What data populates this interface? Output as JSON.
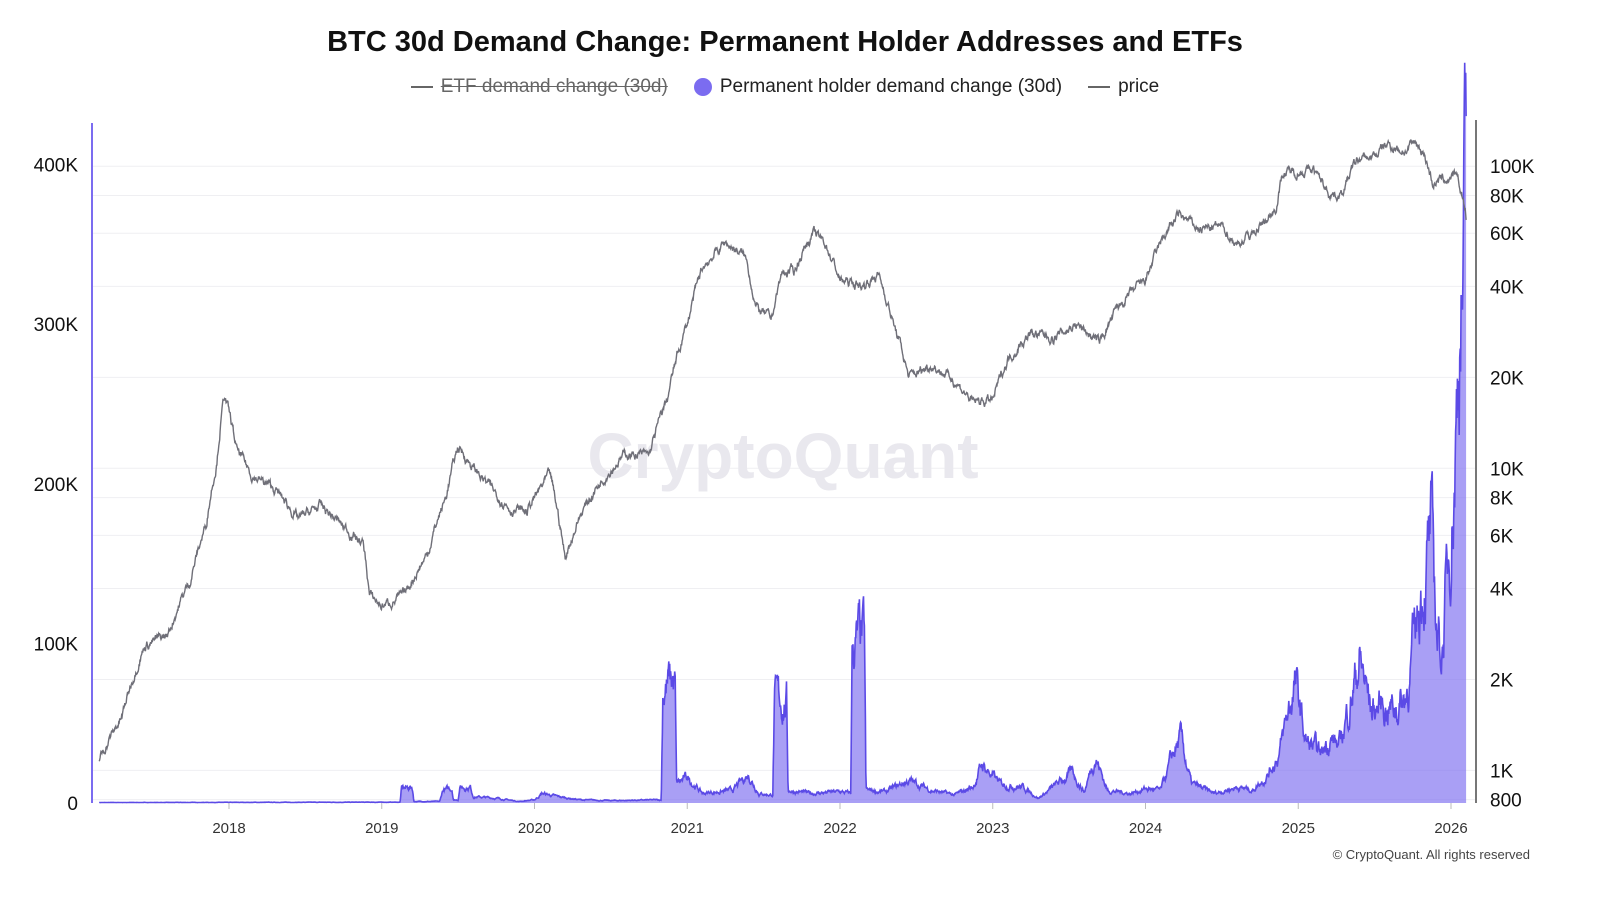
{
  "title": "BTC 30d Demand Change: Permanent Holder Addresses and ETFs",
  "legend": [
    {
      "label": "ETF demand change (30d)",
      "hidden": true,
      "color": "#666666"
    },
    {
      "label": "Permanent holder demand change (30d)",
      "hidden": false,
      "color": "#7b6cf0"
    },
    {
      "label": "price",
      "hidden": false,
      "color": "#6f6f78"
    }
  ],
  "watermark": "CryptoQuant",
  "copyright": "© CryptoQuant. All rights reserved",
  "chart_data": {
    "type": "area",
    "title": "BTC 30d Demand Change: Permanent Holder Addresses and ETFs",
    "x_ticks": [
      "2018",
      "2019",
      "2020",
      "2021",
      "2022",
      "2023",
      "2024",
      "2025",
      "2026"
    ],
    "left_axis": {
      "ticks": [
        "0",
        "100K",
        "200K",
        "300K",
        "400K"
      ],
      "values": [
        0,
        100,
        200,
        300,
        400
      ],
      "range_k": [
        0,
        426
      ],
      "color": "#7b6cf0"
    },
    "right_axis": {
      "scale": "log",
      "ticks": [
        "800",
        "1K",
        "2K",
        "4K",
        "6K",
        "8K",
        "10K",
        "20K",
        "40K",
        "60K",
        "80K",
        "100K"
      ],
      "values": [
        800,
        1000,
        2000,
        4000,
        6000,
        8000,
        10000,
        20000,
        40000,
        60000,
        80000,
        100000
      ],
      "range": [
        780,
        139000
      ]
    },
    "series": [
      {
        "name": "Permanent holder demand change (30d)",
        "axis": "left",
        "unit": "K BTC",
        "color": "#7b6cf0",
        "points": [
          [
            2017.15,
            0.3
          ],
          [
            2018.9,
            0.5
          ],
          [
            2019.12,
            0.5
          ],
          [
            2019.13,
            9
          ],
          [
            2019.2,
            10
          ],
          [
            2019.21,
            1
          ],
          [
            2019.38,
            1
          ],
          [
            2019.4,
            8
          ],
          [
            2019.46,
            9
          ],
          [
            2019.47,
            2
          ],
          [
            2019.5,
            2
          ],
          [
            2019.51,
            10
          ],
          [
            2019.58,
            10
          ],
          [
            2019.6,
            4
          ],
          [
            2019.75,
            3
          ],
          [
            2019.9,
            1
          ],
          [
            2020.0,
            2
          ],
          [
            2020.05,
            6
          ],
          [
            2020.15,
            4
          ],
          [
            2020.3,
            2
          ],
          [
            2020.5,
            1.5
          ],
          [
            2020.83,
            2
          ],
          [
            2020.84,
            73
          ],
          [
            2020.92,
            76
          ],
          [
            2020.93,
            12
          ],
          [
            2021.0,
            16
          ],
          [
            2021.1,
            6
          ],
          [
            2021.3,
            8
          ],
          [
            2021.4,
            18
          ],
          [
            2021.47,
            6
          ],
          [
            2021.56,
            5
          ],
          [
            2021.57,
            63
          ],
          [
            2021.65,
            64
          ],
          [
            2021.66,
            8
          ],
          [
            2021.8,
            6
          ],
          [
            2022.0,
            7
          ],
          [
            2022.07,
            6
          ],
          [
            2022.08,
            99
          ],
          [
            2022.16,
            100
          ],
          [
            2022.17,
            8
          ],
          [
            2022.3,
            7
          ],
          [
            2022.45,
            14
          ],
          [
            2022.6,
            8
          ],
          [
            2022.75,
            5
          ],
          [
            2022.87,
            10
          ],
          [
            2022.93,
            24
          ],
          [
            2023.05,
            12
          ],
          [
            2023.2,
            10
          ],
          [
            2023.3,
            3
          ],
          [
            2023.45,
            14
          ],
          [
            2023.52,
            19
          ],
          [
            2023.6,
            7
          ],
          [
            2023.67,
            30
          ],
          [
            2023.75,
            8
          ],
          [
            2023.9,
            6
          ],
          [
            2024.0,
            9
          ],
          [
            2024.1,
            8
          ],
          [
            2024.18,
            30
          ],
          [
            2024.23,
            40
          ],
          [
            2024.3,
            12
          ],
          [
            2024.45,
            6
          ],
          [
            2024.6,
            10
          ],
          [
            2024.7,
            8
          ],
          [
            2024.8,
            18
          ],
          [
            2024.88,
            32
          ],
          [
            2024.93,
            55
          ],
          [
            2024.98,
            75
          ],
          [
            2025.05,
            38
          ],
          [
            2025.15,
            30
          ],
          [
            2025.2,
            42
          ],
          [
            2025.27,
            35
          ],
          [
            2025.33,
            60
          ],
          [
            2025.4,
            90
          ],
          [
            2025.48,
            58
          ],
          [
            2025.55,
            62
          ],
          [
            2025.62,
            60
          ],
          [
            2025.7,
            65
          ],
          [
            2025.76,
            100
          ],
          [
            2025.82,
            145
          ],
          [
            2025.87,
            165
          ],
          [
            2025.91,
            105
          ],
          [
            2025.94,
            96
          ],
          [
            2025.98,
            145
          ],
          [
            2026.03,
            230
          ],
          [
            2026.06,
            320
          ],
          [
            2026.08,
            330
          ],
          [
            2026.1,
            410
          ]
        ]
      },
      {
        "name": "price",
        "axis": "right",
        "unit": "USD",
        "color": "#6f6f78",
        "points": [
          [
            2017.15,
            1080
          ],
          [
            2017.3,
            1500
          ],
          [
            2017.45,
            2600
          ],
          [
            2017.6,
            2800
          ],
          [
            2017.75,
            4300
          ],
          [
            2017.85,
            6500
          ],
          [
            2017.92,
            10500
          ],
          [
            2017.97,
            17500
          ],
          [
            2018.05,
            11500
          ],
          [
            2018.15,
            9500
          ],
          [
            2018.3,
            8500
          ],
          [
            2018.45,
            6800
          ],
          [
            2018.6,
            7500
          ],
          [
            2018.75,
            6400
          ],
          [
            2018.88,
            5600
          ],
          [
            2018.92,
            3800
          ],
          [
            2019.0,
            3500
          ],
          [
            2019.15,
            3800
          ],
          [
            2019.3,
            5200
          ],
          [
            2019.42,
            8000
          ],
          [
            2019.5,
            11800
          ],
          [
            2019.6,
            10000
          ],
          [
            2019.75,
            8200
          ],
          [
            2019.85,
            7300
          ],
          [
            2019.95,
            7200
          ],
          [
            2020.1,
            9500
          ],
          [
            2020.2,
            5000
          ],
          [
            2020.3,
            7000
          ],
          [
            2020.45,
            9300
          ],
          [
            2020.6,
            11200
          ],
          [
            2020.75,
            11000
          ],
          [
            2020.87,
            17000
          ],
          [
            2021.0,
            30000
          ],
          [
            2021.1,
            46000
          ],
          [
            2021.25,
            56000
          ],
          [
            2021.38,
            50000
          ],
          [
            2021.45,
            34000
          ],
          [
            2021.55,
            31000
          ],
          [
            2021.62,
            44000
          ],
          [
            2021.7,
            45000
          ],
          [
            2021.82,
            60000
          ],
          [
            2021.9,
            56000
          ],
          [
            2022.0,
            42000
          ],
          [
            2022.15,
            40000
          ],
          [
            2022.25,
            44000
          ],
          [
            2022.35,
            30000
          ],
          [
            2022.45,
            20000
          ],
          [
            2022.6,
            22000
          ],
          [
            2022.75,
            19500
          ],
          [
            2022.87,
            16500
          ],
          [
            2023.0,
            16800
          ],
          [
            2023.1,
            23000
          ],
          [
            2023.25,
            28000
          ],
          [
            2023.4,
            27000
          ],
          [
            2023.55,
            30000
          ],
          [
            2023.7,
            26000
          ],
          [
            2023.82,
            34000
          ],
          [
            2024.0,
            42000
          ],
          [
            2024.15,
            62000
          ],
          [
            2024.22,
            69000
          ],
          [
            2024.35,
            62000
          ],
          [
            2024.5,
            63000
          ],
          [
            2024.6,
            55000
          ],
          [
            2024.75,
            63000
          ],
          [
            2024.85,
            72000
          ],
          [
            2024.9,
            95000
          ],
          [
            2025.0,
            96000
          ],
          [
            2025.1,
            97000
          ],
          [
            2025.2,
            82000
          ],
          [
            2025.28,
            80000
          ],
          [
            2025.38,
            104000
          ],
          [
            2025.5,
            108000
          ],
          [
            2025.58,
            118000
          ],
          [
            2025.7,
            112000
          ],
          [
            2025.77,
            120000
          ],
          [
            2025.83,
            108000
          ],
          [
            2025.88,
            88000
          ],
          [
            2025.95,
            90000
          ],
          [
            2026.03,
            92000
          ],
          [
            2026.08,
            78000
          ],
          [
            2026.1,
            67000
          ]
        ]
      }
    ]
  }
}
